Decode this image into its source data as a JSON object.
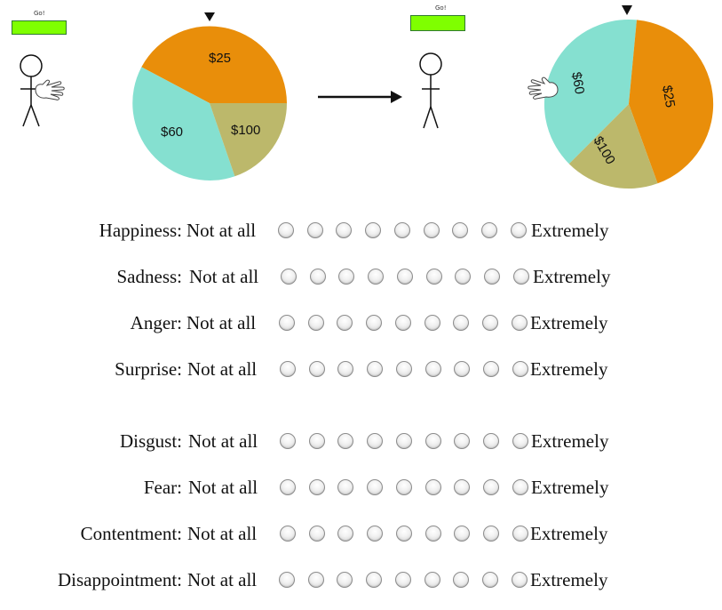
{
  "spin_panel": {
    "before": {
      "go_button_label": "Go!",
      "wheel_labels": [
        "$25",
        "$60",
        "$100"
      ]
    },
    "after": {
      "go_button_label": "Go!",
      "wheel_labels": [
        "$60",
        "$25",
        "$100"
      ]
    },
    "colors": {
      "orange": "#e98e0a",
      "teal": "#85e0d0",
      "olive": "#bcb86b",
      "go_green": "#7fff00"
    }
  },
  "scale": {
    "low_label": "Not at all",
    "high_label": "Extremely",
    "points": 9
  },
  "emotions": [
    "Happiness:",
    "Sadness:",
    "Anger:",
    "Surprise:",
    "Disgust:",
    "Fear:",
    "Contentment:",
    "Disappointment:"
  ]
}
